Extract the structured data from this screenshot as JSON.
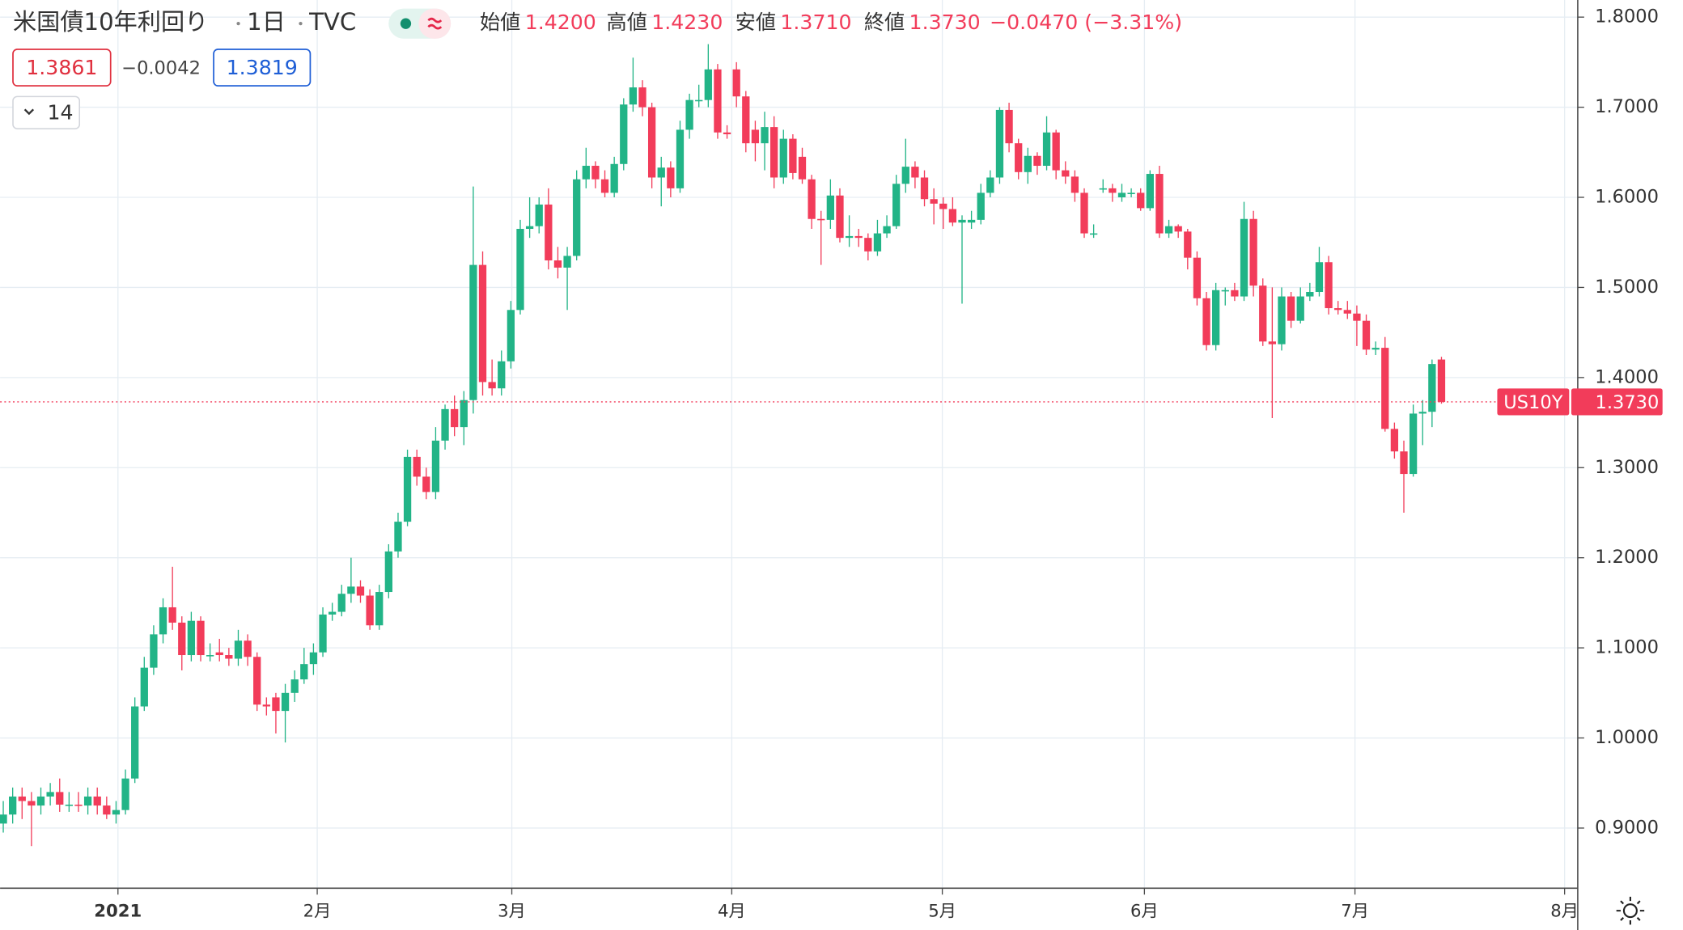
{
  "header": {
    "title": "米国債10年利回り",
    "interval": "1日",
    "source": "TVC",
    "ohlc_labels": [
      {
        "name": "始値",
        "value": "1.4200"
      },
      {
        "name": "高値",
        "value": "1.4230"
      },
      {
        "name": "安値",
        "value": "1.3710"
      },
      {
        "name": "終値",
        "value": "1.3730"
      }
    ],
    "change": "−0.0470 (−3.31%)",
    "bid": "1.3861",
    "spread": "−0.0042",
    "ask": "1.3819",
    "indicator_count": "14"
  },
  "chart_data": {
    "type": "candlestick",
    "symbol_tag": "US10Y",
    "last_price_label": "1.3730",
    "up_color": "#22b487",
    "down_color": "#f23c5a",
    "open": [
      0.905,
      0.915,
      0.935,
      0.93,
      0.925,
      0.935,
      0.94,
      0.926,
      0.926,
      0.925,
      0.935,
      0.925,
      0.915,
      0.92,
      0.955,
      1.035,
      1.078,
      1.115,
      1.145,
      1.128,
      1.092,
      1.13,
      1.092,
      1.095,
      1.092,
      1.088,
      1.108,
      1.09,
      1.037,
      1.045,
      1.03,
      1.05,
      1.065,
      1.082,
      1.095,
      1.137,
      1.14,
      1.16,
      1.168,
      1.158,
      1.125,
      1.162,
      1.207,
      1.24,
      1.312,
      1.29,
      1.273,
      1.33,
      1.365,
      1.345,
      1.375,
      1.525,
      1.395,
      1.388,
      1.418,
      1.475,
      1.565,
      1.568,
      1.592,
      1.53,
      1.522,
      1.535,
      1.62,
      1.635,
      1.62,
      1.605,
      1.637,
      1.703,
      1.722,
      1.7,
      1.622,
      1.633,
      1.61,
      1.675,
      1.708,
      1.708,
      1.742,
      1.672,
      1.742,
      1.712,
      1.675,
      1.66,
      1.678,
      1.622,
      1.665,
      1.645,
      1.62,
      1.576,
      1.575,
      1.602,
      1.555,
      1.557,
      1.555,
      1.54,
      1.56,
      1.568,
      1.615,
      1.634,
      1.622,
      1.598,
      1.593,
      1.587,
      1.572,
      1.572,
      1.575,
      1.605,
      1.622,
      1.697,
      1.66,
      1.628,
      1.646,
      1.635,
      1.672,
      1.63,
      1.623,
      1.605,
      1.56,
      1.61,
      1.61,
      1.6,
      1.605,
      1.605,
      1.588,
      1.626,
      1.56,
      1.568,
      1.562,
      1.533,
      1.488,
      1.436,
      1.497,
      1.497,
      1.49,
      1.576,
      1.502,
      1.44,
      1.437,
      1.49,
      1.463,
      1.49,
      1.495,
      1.528,
      1.477,
      1.475,
      1.471,
      1.463,
      1.431,
      1.433,
      1.343,
      1.318,
      1.293,
      1.36,
      1.362,
      1.42
    ],
    "high": [
      0.93,
      0.945,
      0.945,
      0.94,
      0.945,
      0.95,
      0.955,
      0.94,
      0.94,
      0.945,
      0.945,
      0.935,
      0.93,
      0.965,
      1.045,
      1.09,
      1.125,
      1.155,
      1.19,
      1.135,
      1.14,
      1.135,
      1.105,
      1.11,
      1.1,
      1.12,
      1.115,
      1.095,
      1.045,
      1.05,
      1.06,
      1.075,
      1.1,
      1.105,
      1.145,
      1.15,
      1.17,
      1.2,
      1.175,
      1.165,
      1.17,
      1.215,
      1.25,
      1.32,
      1.32,
      1.3,
      1.345,
      1.37,
      1.38,
      1.385,
      1.612,
      1.54,
      1.42,
      1.43,
      1.485,
      1.575,
      1.6,
      1.6,
      1.61,
      1.545,
      1.545,
      1.63,
      1.655,
      1.64,
      1.63,
      1.645,
      1.71,
      1.755,
      1.73,
      1.705,
      1.645,
      1.64,
      1.685,
      1.715,
      1.725,
      1.77,
      1.748,
      1.68,
      1.75,
      1.718,
      1.685,
      1.695,
      1.69,
      1.675,
      1.67,
      1.655,
      1.625,
      1.585,
      1.62,
      1.61,
      1.58,
      1.565,
      1.56,
      1.575,
      1.58,
      1.625,
      1.665,
      1.64,
      1.63,
      1.61,
      1.6,
      1.6,
      1.58,
      1.585,
      1.615,
      1.63,
      1.7,
      1.705,
      1.665,
      1.655,
      1.65,
      1.69,
      1.675,
      1.64,
      1.63,
      1.61,
      1.57,
      1.62,
      1.615,
      1.615,
      1.61,
      1.61,
      1.63,
      1.635,
      1.575,
      1.57,
      1.565,
      1.54,
      1.495,
      1.505,
      1.5,
      1.505,
      1.595,
      1.585,
      1.51,
      1.5,
      1.5,
      1.495,
      1.5,
      1.505,
      1.545,
      1.535,
      1.485,
      1.485,
      1.48,
      1.47,
      1.44,
      1.445,
      1.35,
      1.33,
      1.37,
      1.375,
      1.42,
      1.423
    ],
    "low": [
      0.895,
      0.905,
      0.91,
      0.88,
      0.915,
      0.925,
      0.918,
      0.918,
      0.918,
      0.915,
      0.915,
      0.91,
      0.905,
      0.915,
      0.95,
      1.03,
      1.07,
      1.105,
      1.12,
      1.075,
      1.085,
      1.085,
      1.085,
      1.085,
      1.08,
      1.08,
      1.08,
      1.03,
      1.025,
      1.005,
      0.995,
      1.04,
      1.06,
      1.07,
      1.09,
      1.13,
      1.135,
      1.15,
      1.15,
      1.12,
      1.12,
      1.155,
      1.2,
      1.235,
      1.28,
      1.265,
      1.265,
      1.32,
      1.335,
      1.325,
      1.36,
      1.38,
      1.38,
      1.38,
      1.41,
      1.47,
      1.555,
      1.56,
      1.52,
      1.51,
      1.475,
      1.53,
      1.61,
      1.61,
      1.6,
      1.6,
      1.63,
      1.695,
      1.69,
      1.61,
      1.59,
      1.6,
      1.605,
      1.665,
      1.7,
      1.7,
      1.665,
      1.665,
      1.7,
      1.65,
      1.64,
      1.63,
      1.61,
      1.615,
      1.62,
      1.615,
      1.565,
      1.525,
      1.565,
      1.55,
      1.545,
      1.545,
      1.53,
      1.535,
      1.555,
      1.565,
      1.605,
      1.61,
      1.59,
      1.57,
      1.565,
      1.568,
      1.482,
      1.565,
      1.57,
      1.6,
      1.615,
      1.65,
      1.62,
      1.615,
      1.625,
      1.63,
      1.62,
      1.615,
      1.595,
      1.555,
      1.555,
      1.605,
      1.595,
      1.595,
      1.6,
      1.585,
      1.585,
      1.555,
      1.555,
      1.555,
      1.52,
      1.48,
      1.43,
      1.43,
      1.48,
      1.485,
      1.485,
      1.49,
      1.435,
      1.355,
      1.43,
      1.455,
      1.46,
      1.485,
      1.49,
      1.47,
      1.47,
      1.465,
      1.435,
      1.425,
      1.425,
      1.34,
      1.31,
      1.25,
      1.29,
      1.325,
      1.345,
      1.371
    ],
    "close": [
      0.915,
      0.935,
      0.93,
      0.925,
      0.935,
      0.94,
      0.926,
      0.926,
      0.925,
      0.935,
      0.925,
      0.915,
      0.92,
      0.955,
      1.035,
      1.078,
      1.115,
      1.145,
      1.128,
      1.092,
      1.13,
      1.092,
      1.092,
      1.092,
      1.088,
      1.108,
      1.09,
      1.037,
      1.035,
      1.03,
      1.05,
      1.065,
      1.082,
      1.095,
      1.137,
      1.14,
      1.16,
      1.168,
      1.158,
      1.125,
      1.162,
      1.207,
      1.24,
      1.312,
      1.29,
      1.273,
      1.33,
      1.365,
      1.345,
      1.375,
      1.525,
      1.395,
      1.388,
      1.418,
      1.475,
      1.565,
      1.568,
      1.592,
      1.53,
      1.522,
      1.535,
      1.62,
      1.635,
      1.62,
      1.605,
      1.637,
      1.703,
      1.722,
      1.7,
      1.622,
      1.633,
      1.61,
      1.675,
      1.708,
      1.708,
      1.742,
      1.672,
      1.67,
      1.712,
      1.66,
      1.66,
      1.678,
      1.622,
      1.665,
      1.627,
      1.62,
      1.576,
      1.575,
      1.602,
      1.555,
      1.557,
      1.555,
      1.54,
      1.56,
      1.568,
      1.615,
      1.634,
      1.622,
      1.598,
      1.593,
      1.587,
      1.572,
      1.575,
      1.575,
      1.605,
      1.622,
      1.697,
      1.66,
      1.628,
      1.646,
      1.635,
      1.672,
      1.63,
      1.623,
      1.605,
      1.56,
      1.56,
      1.61,
      1.605,
      1.605,
      1.605,
      1.588,
      1.626,
      1.56,
      1.568,
      1.562,
      1.533,
      1.488,
      1.436,
      1.497,
      1.497,
      1.49,
      1.576,
      1.502,
      1.44,
      1.437,
      1.49,
      1.463,
      1.49,
      1.495,
      1.528,
      1.477,
      1.475,
      1.471,
      1.463,
      1.431,
      1.433,
      1.343,
      1.318,
      1.293,
      1.36,
      1.362,
      1.415,
      1.373
    ],
    "xlim": [
      -0.34,
      167.5
    ],
    "xticks": [
      {
        "value": 12.2,
        "label": "2021"
      },
      {
        "value": 33.4,
        "label": "2月"
      },
      {
        "value": 54.1,
        "label": "3月"
      },
      {
        "value": 77.5,
        "label": "4月"
      },
      {
        "value": 99.9,
        "label": "5月"
      },
      {
        "value": 121.4,
        "label": "6月"
      },
      {
        "value": 143.8,
        "label": "7月"
      },
      {
        "value": 166.1,
        "label": "8月"
      }
    ],
    "ylim": [
      0.8333,
      1.819
    ],
    "yticks": [
      {
        "value": 0.9,
        "label": "0.9000"
      },
      {
        "value": 1.0,
        "label": "1.0000"
      },
      {
        "value": 1.1,
        "label": "1.1000"
      },
      {
        "value": 1.2,
        "label": "1.2000"
      },
      {
        "value": 1.3,
        "label": "1.3000"
      },
      {
        "value": 1.4,
        "label": "1.4000"
      },
      {
        "value": 1.5,
        "label": "1.5000"
      },
      {
        "value": 1.6,
        "label": "1.6000"
      },
      {
        "value": 1.7,
        "label": "1.7000"
      },
      {
        "value": 1.8,
        "label": "1.8000"
      }
    ],
    "grid": true
  }
}
